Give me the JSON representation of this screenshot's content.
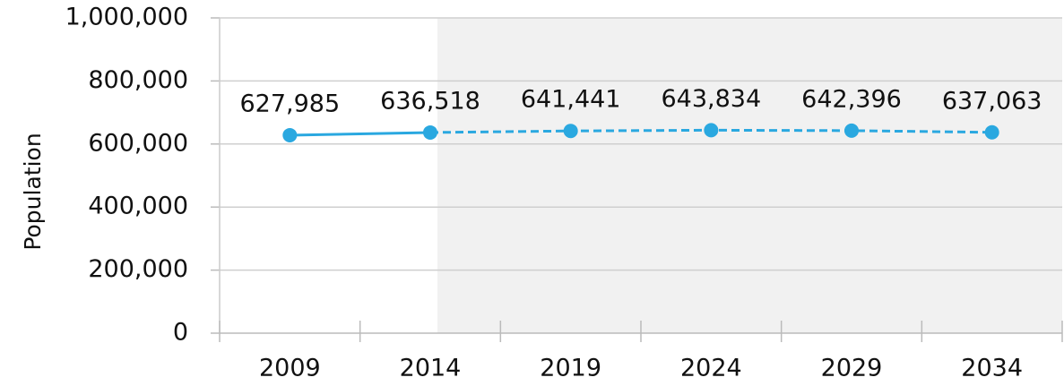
{
  "chart_data": {
    "type": "line",
    "y_label": "Population",
    "categories": [
      "2009",
      "2014",
      "2019",
      "2024",
      "2029",
      "2034"
    ],
    "values": [
      627985,
      636518,
      641441,
      643834,
      642396,
      637063
    ],
    "value_labels": [
      "627,985",
      "636,518",
      "641,441",
      "643,834",
      "642,396",
      "637,063"
    ],
    "color": "#2aa8e0",
    "forecast_from": 1,
    "forecast_shade": "#f1f1f1",
    "ylim": [
      0,
      1000000
    ],
    "yticks": [
      0,
      {
        "value": 200000,
        "label": "200,000"
      },
      {
        "value": 400000,
        "label": "400,000"
      },
      {
        "value": 600000,
        "label": "600,000"
      },
      {
        "value": 800000,
        "label": "800,000"
      },
      {
        "value": 1000000,
        "label": "1,000,000"
      }
    ],
    "grid": true
  }
}
